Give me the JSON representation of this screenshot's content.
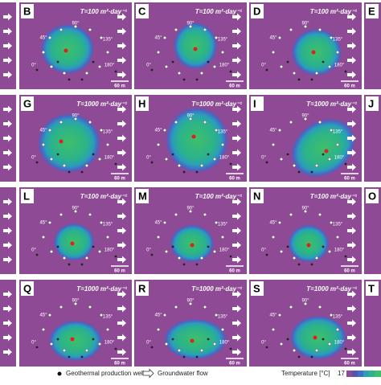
{
  "panels": [
    {
      "letter": "B",
      "t_label": "T=100 m²·day⁻¹",
      "angles": [
        "45°",
        "90°",
        "135°",
        "180°",
        "0°"
      ],
      "scale": "60 m"
    },
    {
      "letter": "C",
      "t_label": "T=100 m²·day⁻¹",
      "angles": [
        "45°",
        "90°",
        "135°",
        "180°",
        "0°"
      ],
      "scale": "60 m"
    },
    {
      "letter": "D",
      "t_label": "T=100 m²·day⁻¹",
      "angles": [
        "45°",
        "90°",
        "135°",
        "180°",
        "0°"
      ],
      "scale": "60 m"
    },
    {
      "letter": "G",
      "t_label": "T=1000 m²·day⁻¹",
      "angles": [
        "45°",
        "90°",
        "135°",
        "180°",
        "0°"
      ],
      "scale": "60 m"
    },
    {
      "letter": "H",
      "t_label": "T=1000 m²·day⁻¹",
      "angles": [
        "45°",
        "90°",
        "135°",
        "180°",
        "0°"
      ],
      "scale": "60 m"
    },
    {
      "letter": "I",
      "t_label": "T=1000 m²·day⁻¹",
      "angles": [
        "45°",
        "90°",
        "135°",
        "180°",
        "0°"
      ],
      "scale": "60 m"
    },
    {
      "letter": "L",
      "t_label": "T=100 m²·day⁻¹",
      "angles": [
        "45°",
        "90°",
        "135°",
        "180°",
        "0°"
      ],
      "scale": "60 m"
    },
    {
      "letter": "M",
      "t_label": "T=100 m²·day⁻¹",
      "angles": [
        "45°",
        "90°",
        "135°",
        "180°",
        "0°"
      ],
      "scale": "60 m"
    },
    {
      "letter": "N",
      "t_label": "T=100 m²·day⁻¹",
      "angles": [
        "45°",
        "90°",
        "135°",
        "180°",
        "0°"
      ],
      "scale": "60 m"
    },
    {
      "letter": "Q",
      "t_label": "T=1000 m²·day⁻¹",
      "angles": [
        "45°",
        "90°",
        "135°",
        "180°",
        "0°"
      ],
      "scale": "60 m"
    },
    {
      "letter": "R",
      "t_label": "T=1000 m²·day⁻¹",
      "angles": [
        "45°",
        "90°",
        "135°",
        "180°",
        "0°"
      ],
      "scale": "60 m"
    },
    {
      "letter": "S",
      "t_label": "T=1000 m²·day⁻¹",
      "angles": [
        "45°",
        "90°",
        "135°",
        "180°",
        "0°"
      ],
      "scale": "60 m"
    }
  ],
  "partial_panels": [
    {
      "letter": "E"
    },
    {
      "letter": "J"
    },
    {
      "letter": "O"
    },
    {
      "letter": "T"
    }
  ],
  "legend": {
    "well": "Geothermal production well",
    "flow": "Groundwater flow",
    "temperature": "Temperature [°C]",
    "temperature_min": "17"
  }
}
